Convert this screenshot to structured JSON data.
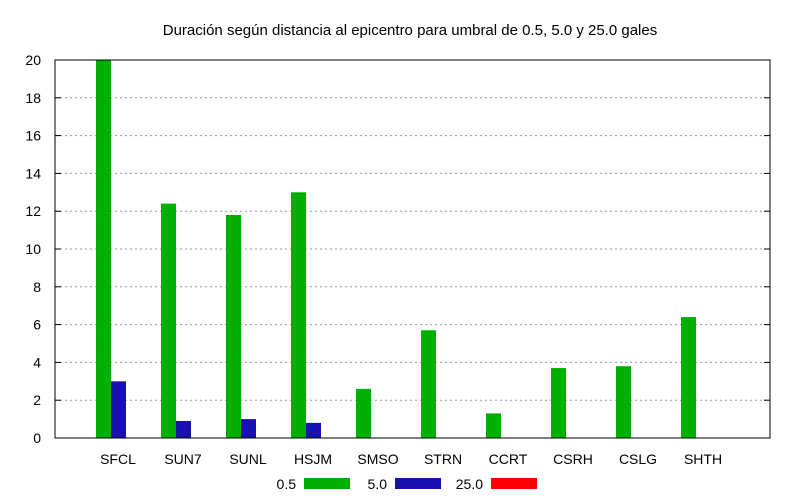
{
  "chart_data": {
    "type": "bar",
    "title": "Duración según distancia al epicentro para umbral de 0.5, 5.0 y 25.0 gales",
    "xlabel": "",
    "ylabel": "",
    "ylim": [
      0,
      20
    ],
    "yticks": [
      0,
      2,
      4,
      6,
      8,
      10,
      12,
      14,
      16,
      18,
      20
    ],
    "grid": "horizontal dotted",
    "legend_position": "bottom",
    "categories": [
      "SFCL",
      "SUN7",
      "SUNL",
      "HSJM",
      "SMSO",
      "STRN",
      "CCRT",
      "CSRH",
      "CSLG",
      "SHTH"
    ],
    "series": [
      {
        "name": "0.5",
        "color": "#00b000",
        "values": [
          20.0,
          12.4,
          11.8,
          13.0,
          2.6,
          5.7,
          1.3,
          3.7,
          3.8,
          6.4
        ]
      },
      {
        "name": "5.0",
        "color": "#1a10b0",
        "values": [
          3.0,
          0.9,
          1.0,
          0.8,
          0,
          0,
          0,
          0,
          0,
          0
        ]
      },
      {
        "name": "25.0",
        "color": "#ff0000",
        "values": [
          0,
          0,
          0,
          0,
          0,
          0,
          0,
          0,
          0,
          0
        ]
      }
    ]
  }
}
